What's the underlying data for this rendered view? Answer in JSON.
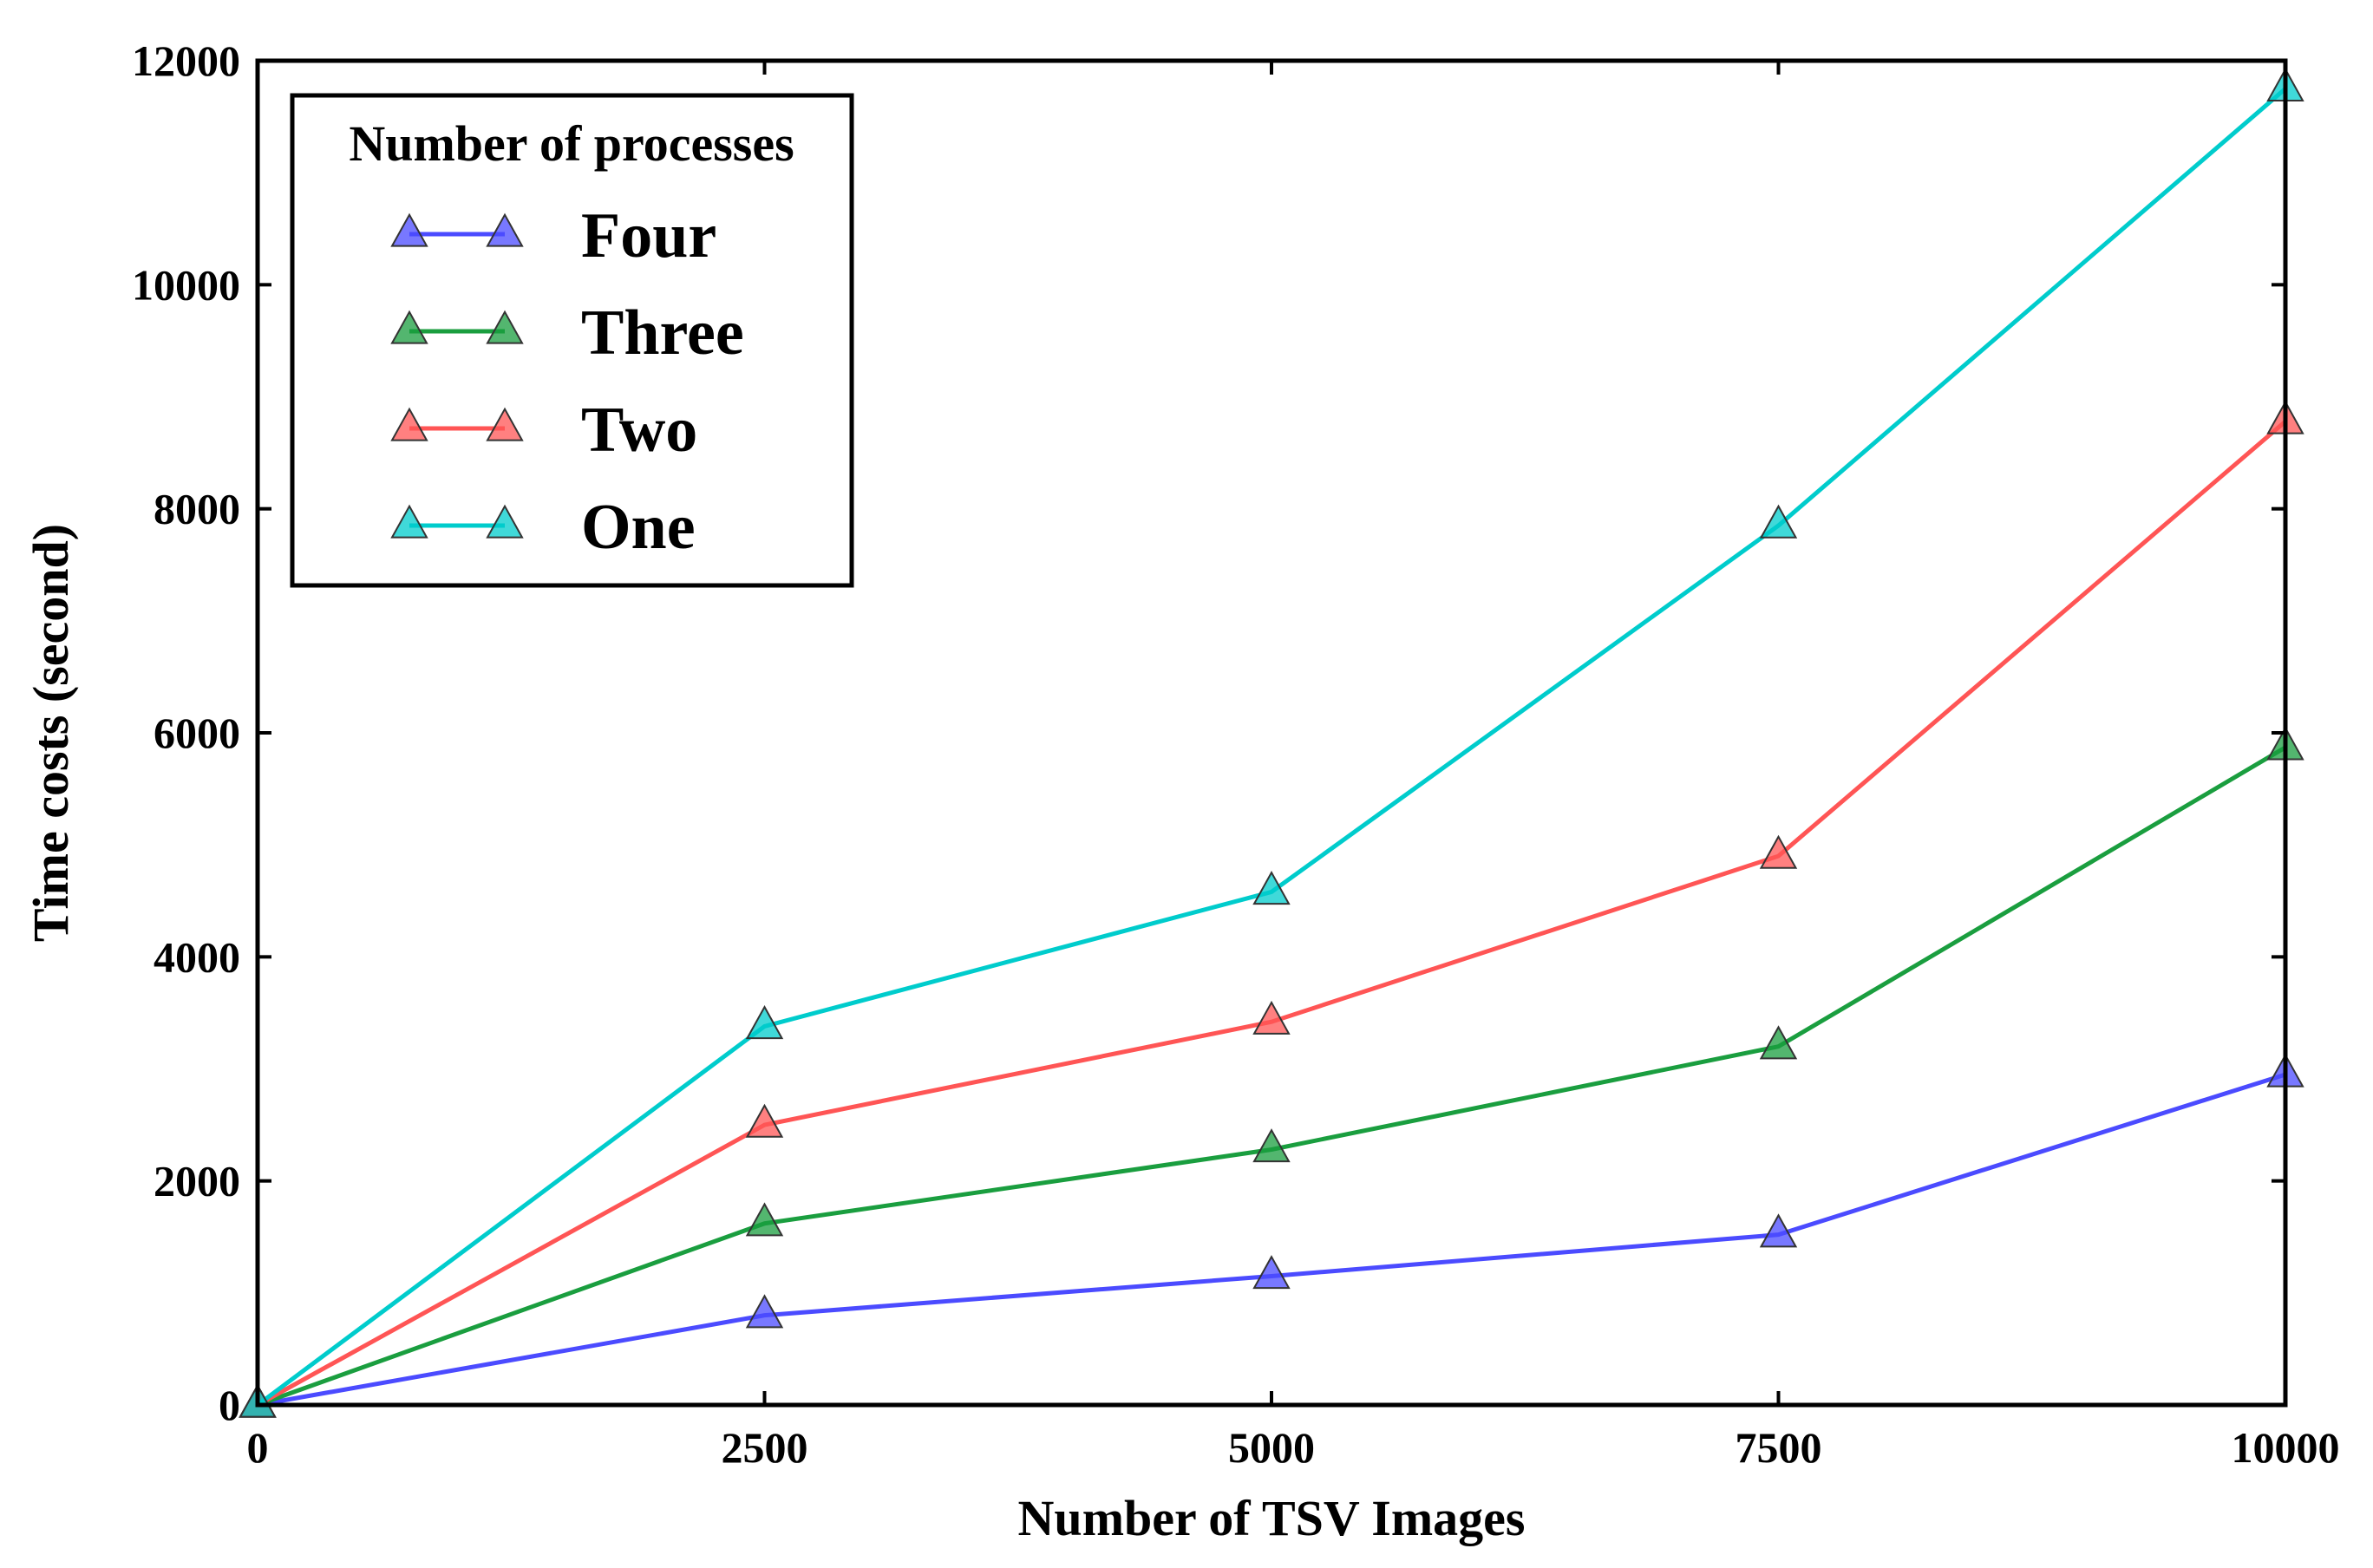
{
  "chart_data": {
    "type": "line",
    "title": "",
    "xlabel": "Number of TSV Images",
    "ylabel": "Time costs (second)",
    "xlim": [
      0,
      10000
    ],
    "ylim": [
      0,
      12000
    ],
    "xticks": [
      0,
      2500,
      5000,
      7500,
      10000
    ],
    "yticks": [
      0,
      2000,
      4000,
      6000,
      8000,
      10000,
      12000
    ],
    "xtick_labels": [
      "0",
      "2500",
      "5000",
      "7500",
      "10000"
    ],
    "ytick_labels": [
      "0",
      "2000",
      "4000",
      "6000",
      "8000",
      "10000",
      "12000"
    ],
    "grid": false,
    "marker": "triangle-up",
    "legend": {
      "title": "Number of processes",
      "position": "top-left"
    },
    "x": [
      0,
      2500,
      5000,
      7500,
      10000
    ],
    "series": [
      {
        "name": "Four",
        "color": "#4b4bff",
        "values": [
          0,
          800,
          1150,
          1520,
          2950
        ]
      },
      {
        "name": "Three",
        "color": "#1a9e3f",
        "values": [
          0,
          1620,
          2280,
          3200,
          5870
        ]
      },
      {
        "name": "Two",
        "color": "#ff5555",
        "values": [
          0,
          2500,
          3420,
          4900,
          8780
        ]
      },
      {
        "name": "One",
        "color": "#00cccc",
        "values": [
          0,
          3380,
          4580,
          7850,
          11750
        ]
      }
    ]
  }
}
